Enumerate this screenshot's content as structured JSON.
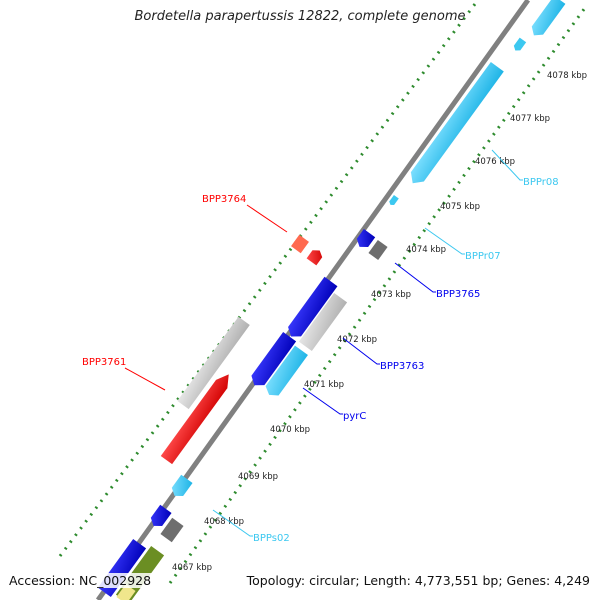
{
  "title": "Bordetella parapertussis 12822, complete genome",
  "footer": {
    "accession": "Accession: NC_002928",
    "topology": "Topology: circular; Length: 4,773,551 bp; Genes: 4,249"
  },
  "colors": {
    "backbone": "#808080",
    "ticks": "#2e8b2e",
    "cds_forward": "#ff0000",
    "cds_reverse": "#0000ee",
    "rna": "#3cc8f0",
    "pseudo_gray": "#c8c8c8",
    "dark_gray": "#707070",
    "olive": "#6b8e23"
  },
  "scale_labels": [
    "4067 kbp",
    "4068 kbp",
    "4069 kbp",
    "4070 kbp",
    "4071 kbp",
    "4072 kbp",
    "4073 kbp",
    "4074 kbp",
    "4075 kbp",
    "4076 kbp",
    "4077 kbp",
    "4078 kbp"
  ],
  "feature_labels": [
    {
      "text": "BPP3764",
      "color": "#ff0000"
    },
    {
      "text": "BPP3761",
      "color": "#ff0000"
    },
    {
      "text": "BPP3765",
      "color": "#0000ee"
    },
    {
      "text": "BPP3763",
      "color": "#0000ee"
    },
    {
      "text": "pyrC",
      "color": "#0000ee"
    },
    {
      "text": "BPPr08",
      "color": "#3cc8f0"
    },
    {
      "text": "BPPr07",
      "color": "#3cc8f0"
    },
    {
      "text": "BPPs02",
      "color": "#3cc8f0"
    }
  ]
}
